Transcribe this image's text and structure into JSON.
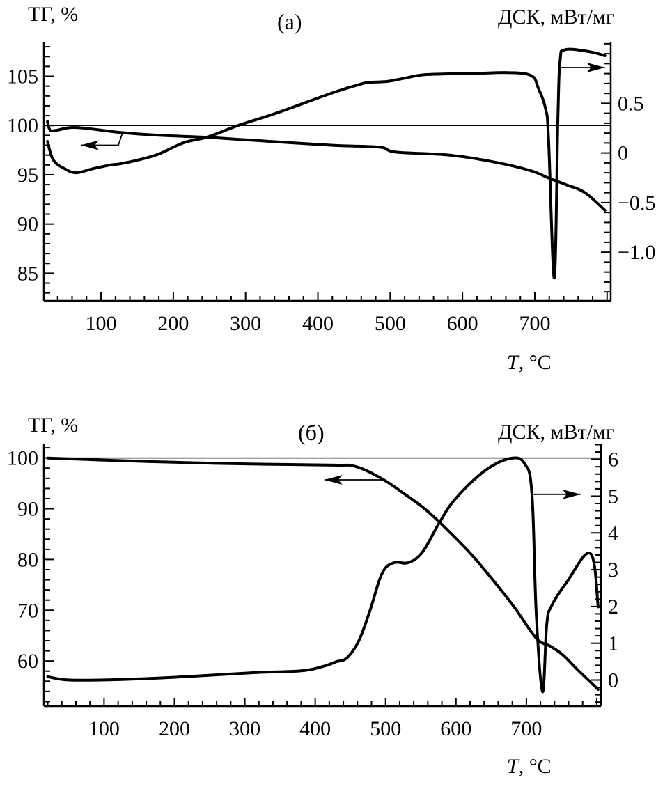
{
  "chart_data": [
    {
      "type": "line",
      "panel_label": "(a)",
      "left_axis_title": "ТГ, %",
      "right_axis_title": "ДСК, мВт/мг",
      "xlabel_italic": "T",
      "xlabel_rest": ", °C",
      "xlim": [
        21,
        805
      ],
      "ylim_left": [
        82.2,
        108.5
      ],
      "ylim_right": [
        -1.49,
        1.12
      ],
      "x_ticks": [
        100,
        200,
        300,
        400,
        500,
        600,
        700
      ],
      "x_tick_labels": [
        "100",
        "200",
        "300",
        "400",
        "500",
        "600",
        "700"
      ],
      "x_minor_step": 20,
      "y_left_ticks": [
        85,
        90,
        95,
        100,
        105
      ],
      "y_left_tick_labels": [
        "85",
        "90",
        "95",
        "100",
        "105"
      ],
      "y_left_minor_step": 1,
      "y_right_ticks": [
        -1.0,
        -0.5,
        0,
        0.5
      ],
      "y_right_tick_labels": [
        "−1.0",
        "−0.5",
        "0",
        "0.5"
      ],
      "y_right_minor_step": 0.1,
      "reference_line_left": 100,
      "grid": false,
      "series": [
        {
          "name": "ТГ",
          "axis": "left",
          "x": [
            26,
            29.5,
            37.5,
            66,
            126,
            183,
            247,
            310,
            418,
            485,
            508,
            582,
            647,
            695,
            718,
            743,
            769,
            797
          ],
          "y": [
            100.4,
            99.55,
            99.5,
            99.8,
            99.3,
            99.0,
            98.8,
            98.5,
            98.0,
            97.8,
            97.3,
            97.0,
            96.25,
            95.4,
            94.7,
            94.0,
            93.2,
            91.4
          ]
        },
        {
          "name": "ДСК",
          "axis": "right",
          "x": [
            26,
            34,
            50,
            66,
            88,
            114,
            126,
            152,
            180,
            215,
            247,
            291,
            342,
            418,
            453,
            469,
            495,
            518,
            550,
            615,
            663,
            695,
            705,
            715,
            719,
            727,
            732,
            735,
            742,
            776,
            797
          ],
          "y": [
            0.117,
            -0.07,
            -0.16,
            -0.2,
            -0.16,
            -0.12,
            -0.11,
            -0.07,
            -0.01,
            0.105,
            0.16,
            0.28,
            0.4,
            0.6,
            0.68,
            0.71,
            0.72,
            0.75,
            0.79,
            0.8,
            0.81,
            0.78,
            0.65,
            0.44,
            0.14,
            -1.26,
            0.37,
            0.93,
            1.04,
            1.02,
            0.98
          ]
        }
      ],
      "annotations": [
        {
          "type": "arrow",
          "axis": "left",
          "points": [
            [
              130,
              99.3
            ],
            [
              124,
              98.0
            ],
            [
              72,
              98.0
            ]
          ],
          "direction": "left"
        },
        {
          "type": "arrow",
          "axis": "right",
          "points": [
            [
              736,
              0.86
            ],
            [
              797,
              0.86
            ]
          ],
          "direction": "right"
        }
      ]
    },
    {
      "type": "line",
      "panel_label": "(б)",
      "left_axis_title": "ТГ, %",
      "right_axis_title": "ДСК, мВт/мг",
      "xlabel_italic": "T",
      "xlabel_rest": ", °C",
      "xlim": [
        14.5,
        806
      ],
      "ylim_left": [
        51.1,
        102.7
      ],
      "ylim_right": [
        -0.71,
        6.41
      ],
      "x_ticks": [
        100,
        200,
        300,
        400,
        500,
        600,
        700
      ],
      "x_tick_labels": [
        "100",
        "200",
        "300",
        "400",
        "500",
        "600",
        "700"
      ],
      "x_minor_step": 20,
      "y_left_ticks": [
        60,
        70,
        80,
        90,
        100
      ],
      "y_left_tick_labels": [
        "60",
        "70",
        "80",
        "90",
        "100"
      ],
      "y_left_minor_step": 2,
      "y_right_ticks": [
        0,
        1,
        2,
        3,
        4,
        5,
        6
      ],
      "y_right_tick_labels": [
        "0",
        "1",
        "2",
        "3",
        "4",
        "5",
        "6"
      ],
      "y_right_minor_step": 0.2,
      "reference_line_left": 100,
      "grid": false,
      "series": [
        {
          "name": "ТГ",
          "axis": "left",
          "x": [
            20,
            117,
            216,
            315,
            427,
            458,
            495,
            525,
            558,
            591,
            625,
            658,
            684,
            714,
            734,
            751,
            774,
            802
          ],
          "y": [
            100,
            99.5,
            99.1,
            98.8,
            98.6,
            98.3,
            95.9,
            93.1,
            89.7,
            85.4,
            80.5,
            75.0,
            70.4,
            64.5,
            62.9,
            61.3,
            58.1,
            54.4
          ]
        },
        {
          "name": "ДСК",
          "axis": "right",
          "x": [
            20,
            51,
            117,
            215,
            314,
            380,
            413,
            430,
            445,
            462,
            478,
            495,
            512,
            532,
            552,
            575,
            598,
            641,
            678,
            698,
            708,
            714,
            723,
            729,
            736,
            757,
            791,
            802
          ],
          "y": [
            0.09,
            0.0,
            0.01,
            0.09,
            0.2,
            0.25,
            0.38,
            0.5,
            0.6,
            1.07,
            1.9,
            2.9,
            3.19,
            3.19,
            3.47,
            4.23,
            4.9,
            5.69,
            6.03,
            5.87,
            5.05,
            1.83,
            -0.32,
            1.52,
            2.02,
            2.65,
            3.44,
            1.99
          ]
        }
      ],
      "annotations": [
        {
          "type": "arrow",
          "axis": "left",
          "points": [
            [
              495,
              95.7
            ],
            [
              413,
              95.7
            ]
          ],
          "direction": "left"
        },
        {
          "type": "arrow",
          "axis": "right",
          "points": [
            [
              710,
              5.05
            ],
            [
              777,
              5.05
            ]
          ],
          "direction": "right"
        }
      ]
    }
  ]
}
